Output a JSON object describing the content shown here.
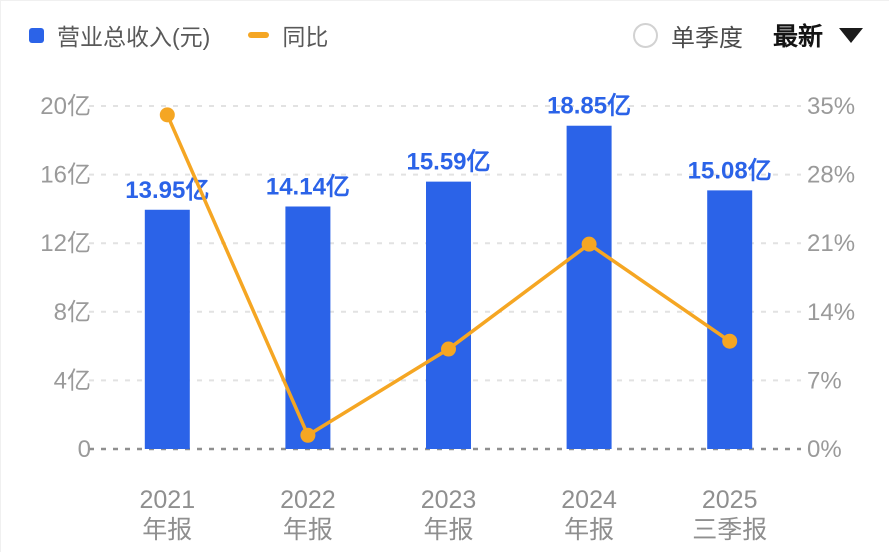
{
  "header": {
    "legend": [
      {
        "name": "revenue",
        "label": "营业总收入(元)",
        "color": "#2B63E8",
        "swatch": "square"
      },
      {
        "name": "yoy",
        "label": "同比",
        "color": "#F5A623",
        "swatch": "dash"
      }
    ],
    "controls": {
      "radio_label": "单季度",
      "radio_checked": false,
      "dropdown_label": "最新",
      "dropdown_icon": "caret-down"
    }
  },
  "chart_data": {
    "type": "bar",
    "subtype": "bar+line combo",
    "categories": [
      [
        "2021",
        "年报"
      ],
      [
        "2022",
        "年报"
      ],
      [
        "2023",
        "年报"
      ],
      [
        "2024",
        "年报"
      ],
      [
        "2025",
        "三季报"
      ]
    ],
    "series": [
      {
        "name": "营业总收入(元)",
        "type": "bar",
        "axis": "left",
        "unit": "亿",
        "values": [
          13.95,
          14.14,
          15.59,
          18.85,
          15.08
        ],
        "labels": [
          "13.95亿",
          "14.14亿",
          "15.59亿",
          "18.85亿",
          "15.08亿"
        ],
        "color": "#2B63E8"
      },
      {
        "name": "同比",
        "type": "line",
        "axis": "right",
        "unit": "%",
        "values": [
          34.1,
          1.4,
          10.2,
          20.9,
          11.0
        ],
        "color": "#F5A623"
      }
    ],
    "left_axis": {
      "ticks": [
        "20亿",
        "16亿",
        "12亿",
        "8亿",
        "4亿",
        "0"
      ],
      "min": 0,
      "max": 20,
      "color": "#9a9a9a"
    },
    "right_axis": {
      "ticks": [
        "35%",
        "28%",
        "21%",
        "14%",
        "7%",
        "0%"
      ],
      "min": 0,
      "max": 35,
      "color": "#9a9a9a"
    },
    "grid": {
      "style": "dashed",
      "line_color": "#e2e2e2",
      "zero_line_color": "#8f8f8f"
    },
    "legend_position": "top-left",
    "title": ""
  }
}
